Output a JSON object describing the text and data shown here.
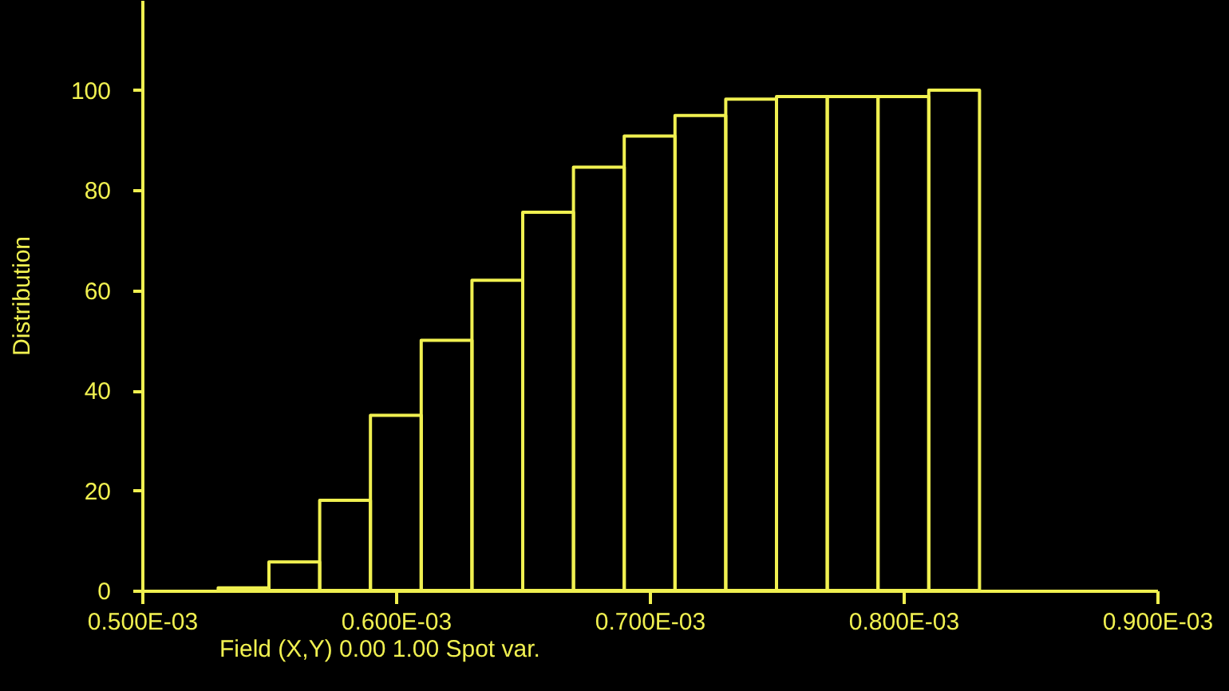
{
  "chart_data": {
    "type": "histogram",
    "xlabel": "Field (X,Y)  0.00  1.00   Spot var.",
    "ylabel": "Distribution",
    "color": "#f0f050",
    "bins": [
      0.00053,
      0.00055,
      0.00057,
      0.00059,
      0.00061,
      0.00063,
      0.00065,
      0.00067,
      0.00069,
      0.00071,
      0.00073,
      0.00075,
      0.00077,
      0.00079,
      0.00081,
      0.00083
    ],
    "values": [
      0.5,
      5.7,
      18,
      35,
      50,
      62,
      75.6,
      84.6,
      90.8,
      94.9,
      98.2,
      98.7,
      98.7,
      98.7,
      100
    ],
    "xlim": [
      0.0005,
      0.0009
    ],
    "xticks": [
      {
        "value": 0.0005,
        "label": "0.500E-03"
      },
      {
        "value": 0.0006,
        "label": "0.600E-03"
      },
      {
        "value": 0.0007,
        "label": "0.700E-03"
      },
      {
        "value": 0.0008,
        "label": "0.800E-03"
      },
      {
        "value": 0.0009,
        "label": "0.900E-03"
      }
    ],
    "ylim": [
      0,
      118
    ],
    "yticks": [
      0,
      20,
      40,
      60,
      80,
      100
    ]
  }
}
